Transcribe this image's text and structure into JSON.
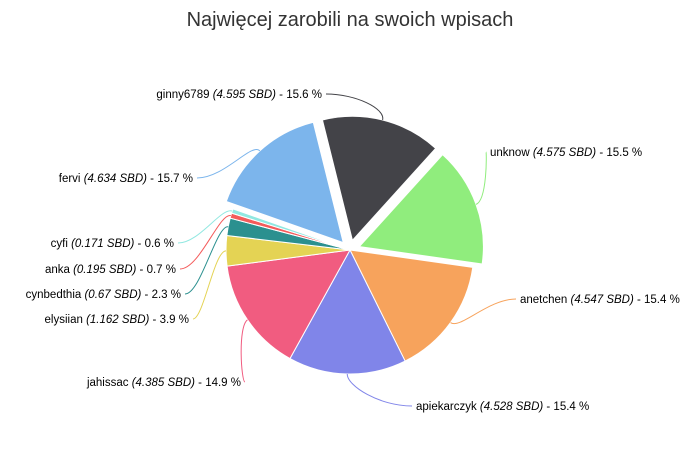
{
  "chart_data": {
    "type": "pie",
    "title": "Najwięcej zarobili na swoich wpisach",
    "slices": [
      {
        "name": "ginny6789",
        "value": 4.595,
        "value_text": "(4.595 SBD)",
        "percent_text": "15.6 %",
        "color": "#434348",
        "exploded": true
      },
      {
        "name": "unknow",
        "value": 4.575,
        "value_text": "(4.575 SBD)",
        "percent_text": "15.5 %",
        "color": "#90ed7d",
        "exploded": true
      },
      {
        "name": "anetchen",
        "value": 4.547,
        "value_text": "(4.547 SBD)",
        "percent_text": "15.4 %",
        "color": "#f7a35c",
        "exploded": false
      },
      {
        "name": "apiekarczyk",
        "value": 4.528,
        "value_text": "(4.528 SBD)",
        "percent_text": "15.4 %",
        "color": "#8085e9",
        "exploded": false
      },
      {
        "name": "jahissac",
        "value": 4.385,
        "value_text": "(4.385 SBD)",
        "percent_text": "14.9 %",
        "color": "#f15c80",
        "exploded": false
      },
      {
        "name": "elysiian",
        "value": 1.162,
        "value_text": "(1.162 SBD)",
        "percent_text": "3.9 %",
        "color": "#e4d354",
        "exploded": false
      },
      {
        "name": "cynbedthia",
        "value": 0.67,
        "value_text": "(0.67 SBD)",
        "percent_text": "2.3 %",
        "color": "#2b908f",
        "exploded": false
      },
      {
        "name": "anka",
        "value": 0.195,
        "value_text": "(0.195 SBD)",
        "percent_text": "0.7 %",
        "color": "#f45b5b",
        "exploded": false
      },
      {
        "name": "cyfi",
        "value": 0.171,
        "value_text": "(0.171 SBD)",
        "percent_text": "0.6 %",
        "color": "#91e8e1",
        "exploded": false
      },
      {
        "name": "fervi",
        "value": 4.634,
        "value_text": "(4.634 SBD)",
        "percent_text": "15.7 %",
        "color": "#7cb5ec",
        "exploded": true
      }
    ]
  }
}
